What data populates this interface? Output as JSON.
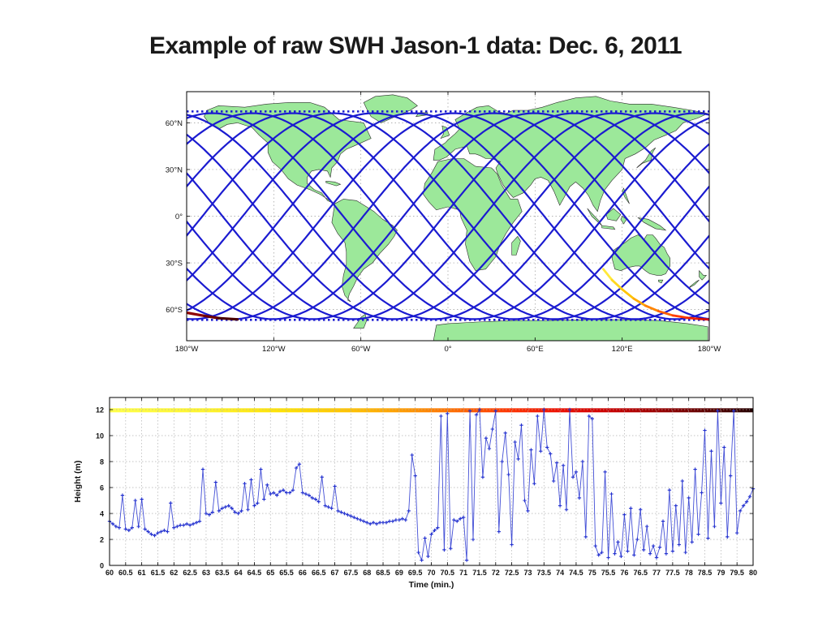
{
  "title": "Example of raw SWH Jason-1 data: Dec. 6, 2011",
  "map": {
    "ytick_labels": [
      "60°N",
      "30°N",
      "0°",
      "30°S",
      "60°S"
    ],
    "ytick_lats": [
      60,
      30,
      0,
      -30,
      -60
    ],
    "xtick_labels": [
      "180°W",
      "120°W",
      "60°W",
      "0°",
      "60°E",
      "120°E",
      "180°W"
    ],
    "xtick_lons": [
      -180,
      -120,
      -60,
      0,
      60,
      120,
      180
    ],
    "lat_range": [
      -80,
      80
    ],
    "lon_range": [
      -180,
      180
    ],
    "land_color": "#9ce89a",
    "coast_color": "#2b2b2b",
    "ocean_color": "#ffffff",
    "track_color": "#1b1bd0",
    "tracks": {
      "count": 13,
      "amplitude_deg": 66.15,
      "lon_spacing_deg": 27.7,
      "phase0_deg": -3,
      "turn_band_lat_north": 67.3,
      "turn_band_lat_south": -66.6
    },
    "highlight_track": {
      "points": [
        [
          107,
          -34
        ],
        [
          113,
          -41
        ],
        [
          120,
          -47
        ],
        [
          128,
          -53
        ],
        [
          136,
          -57.5
        ],
        [
          145,
          -61
        ],
        [
          155,
          -63.8
        ],
        [
          165,
          -65.3
        ],
        [
          173,
          -66
        ],
        [
          180,
          -66.4
        ]
      ],
      "colors": [
        "#ffe93a",
        "#ffd820",
        "#ffc400",
        "#ffa800",
        "#ff8400",
        "#ff5f00",
        "#ff3a00",
        "#f02000",
        "#d81000"
      ],
      "wrap_points": [
        [
          -180,
          -62
        ],
        [
          -168,
          -64
        ],
        [
          -158,
          -65.5
        ],
        [
          -145,
          -66.3
        ]
      ],
      "wrap_colors": [
        "#8f0000",
        "#6e0000",
        "#4a0000"
      ]
    }
  },
  "chart_data": {
    "type": "line",
    "title": "",
    "xlabel": "Time (min.)",
    "ylabel": "Height (m)",
    "xlim": [
      60,
      80
    ],
    "ylim": [
      0,
      12
    ],
    "grid": "dotted",
    "legend": "none",
    "marker": "+",
    "line_color": "#2230cf",
    "xtick_labels": [
      "60",
      "60.5",
      "61",
      "61.5",
      "62",
      "62.5",
      "63",
      "63.5",
      "64",
      "64.5",
      "65",
      "65.5",
      "66",
      "66.5",
      "67",
      "67.5",
      "68",
      "68.5",
      "69",
      "69.5",
      "70",
      "70.5",
      "71",
      "71.5",
      "72",
      "72.5",
      "73",
      "73.5",
      "74",
      "74.5",
      "75",
      "75.5",
      "76",
      "76.5",
      "77",
      "77.5",
      "78",
      "78.5",
      "79",
      "79.5",
      "80"
    ],
    "ytick_labels": [
      "0",
      "2",
      "4",
      "6",
      "8",
      "10",
      "12"
    ],
    "x_start": 60,
    "x_step": 0.1,
    "y": [
      3.4,
      3.2,
      3.0,
      2.9,
      5.4,
      2.8,
      2.7,
      2.9,
      5.0,
      3.0,
      5.1,
      2.8,
      2.6,
      2.4,
      2.3,
      2.5,
      2.6,
      2.7,
      2.6,
      4.8,
      2.9,
      3.0,
      3.1,
      3.1,
      3.2,
      3.1,
      3.2,
      3.3,
      3.4,
      7.4,
      4.0,
      3.9,
      4.1,
      6.4,
      4.2,
      4.4,
      4.5,
      4.6,
      4.4,
      4.1,
      4.0,
      4.2,
      6.3,
      4.3,
      6.6,
      4.6,
      4.8,
      7.4,
      5.1,
      6.2,
      5.5,
      5.6,
      5.4,
      5.7,
      5.8,
      5.6,
      5.6,
      5.8,
      7.5,
      7.8,
      5.6,
      5.5,
      5.4,
      5.2,
      5.1,
      4.9,
      6.8,
      4.6,
      4.5,
      4.4,
      6.1,
      4.2,
      4.1,
      4.0,
      3.9,
      3.8,
      3.7,
      3.6,
      3.5,
      3.4,
      3.3,
      3.2,
      3.3,
      3.2,
      3.3,
      3.3,
      3.3,
      3.4,
      3.4,
      3.5,
      3.5,
      3.6,
      3.5,
      4.2,
      8.5,
      6.9,
      1.0,
      0.4,
      2.1,
      0.7,
      2.4,
      2.7,
      2.9,
      11.5,
      1.2,
      11.7,
      1.3,
      3.5,
      3.4,
      3.6,
      3.7,
      0.4,
      11.9,
      2.0,
      11.6,
      12.0,
      6.8,
      9.8,
      9.0,
      10.5,
      11.9,
      2.6,
      8.0,
      10.2,
      7.0,
      1.6,
      9.5,
      8.2,
      10.8,
      5.0,
      4.2,
      8.9,
      6.3,
      11.5,
      8.8,
      12.0,
      9.1,
      8.6,
      6.5,
      7.9,
      4.6,
      7.7,
      4.3,
      12.0,
      6.8,
      7.2,
      5.2,
      8.0,
      2.2,
      11.5,
      11.3,
      1.5,
      0.8,
      1.0,
      7.2,
      0.6,
      5.5,
      0.9,
      1.8,
      0.7,
      3.9,
      1.1,
      4.4,
      0.8,
      2.0,
      4.3,
      1.2,
      3.0,
      0.9,
      1.5,
      0.6,
      1.4,
      3.4,
      0.9,
      5.8,
      1.1,
      4.6,
      1.6,
      6.5,
      1.0,
      5.2,
      1.8,
      7.4,
      2.4,
      5.6,
      10.4,
      2.1,
      8.8,
      3.0,
      11.9,
      4.8,
      9.1,
      2.2,
      6.9,
      11.9,
      2.5,
      4.2,
      4.6,
      4.9,
      5.3,
      5.9
    ],
    "overlay_colorline": {
      "value": 11.95,
      "meaning": "pass time color scale",
      "stops": [
        [
          0,
          "#ffff4a"
        ],
        [
          0.15,
          "#fdf32e"
        ],
        [
          0.28,
          "#ffe000"
        ],
        [
          0.38,
          "#ffc000"
        ],
        [
          0.47,
          "#ff9400"
        ],
        [
          0.55,
          "#ff6400"
        ],
        [
          0.62,
          "#ff3500"
        ],
        [
          0.7,
          "#ed0f00"
        ],
        [
          0.78,
          "#c80000"
        ],
        [
          0.86,
          "#960000"
        ],
        [
          0.93,
          "#5c0000"
        ],
        [
          1,
          "#250000"
        ]
      ]
    }
  }
}
